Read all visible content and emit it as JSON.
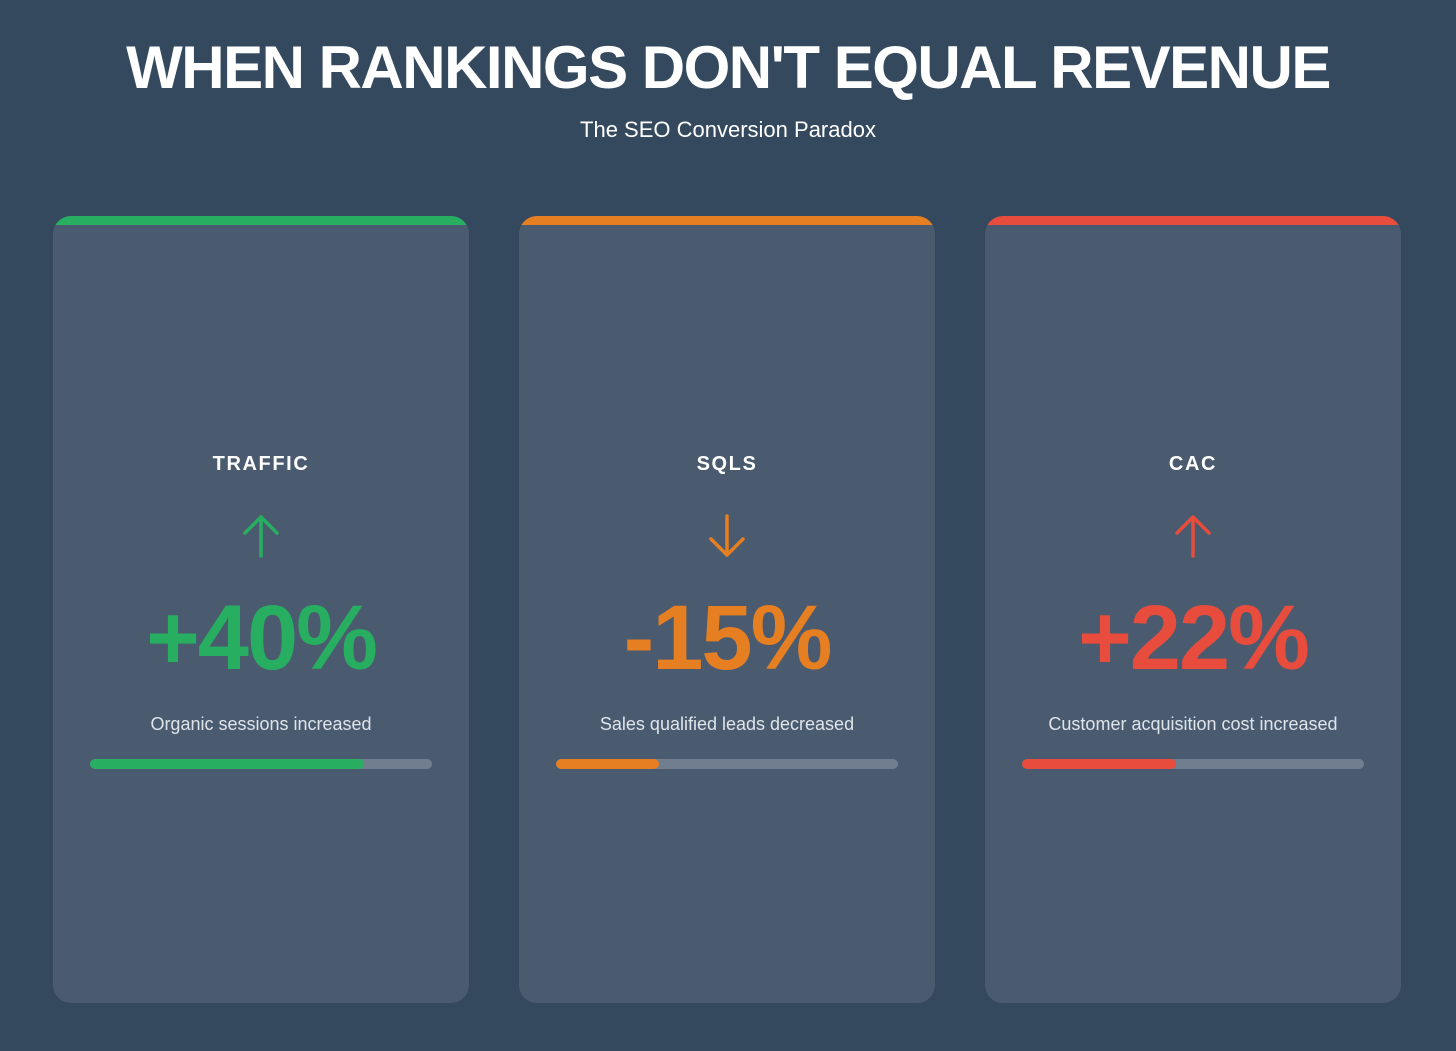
{
  "header": {
    "title": "WHEN RANKINGS DON'T EQUAL REVENUE",
    "subtitle": "The SEO Conversion Paradox"
  },
  "cards": [
    {
      "label": "TRAFFIC",
      "icon": "arrow-up-icon",
      "value": "+40%",
      "description": "Organic sessions increased",
      "color": "#27ae60",
      "progress": 0.8
    },
    {
      "label": "SQLS",
      "icon": "arrow-down-icon",
      "value": "-15%",
      "description": "Sales qualified leads decreased",
      "color": "#e67e22",
      "progress": 0.3
    },
    {
      "label": "CAC",
      "icon": "arrow-up-icon",
      "value": "+22%",
      "description": "Customer acquisition cost increased",
      "color": "#e74c3c",
      "progress": 0.45
    }
  ]
}
